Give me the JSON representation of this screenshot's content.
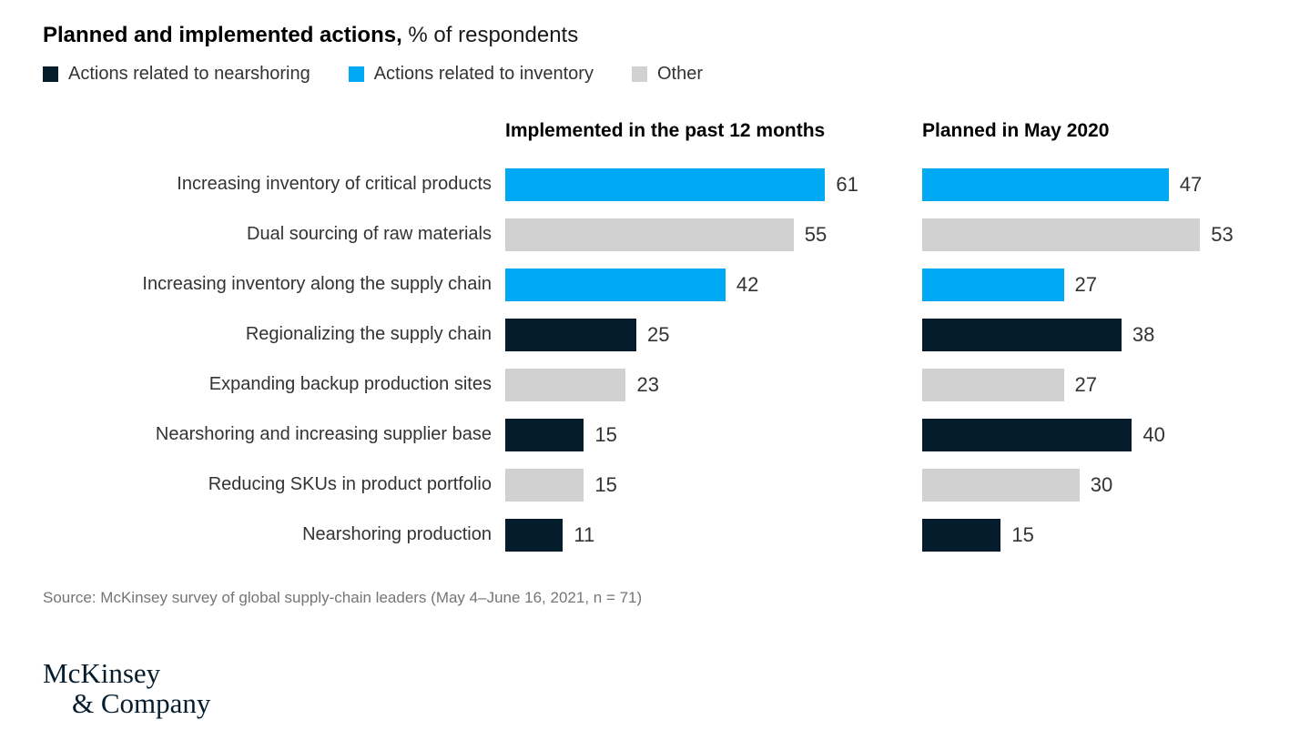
{
  "title": {
    "bold": "Planned and implemented actions,",
    "normal": " % of respondents"
  },
  "legend": [
    {
      "label": "Actions related to nearshoring",
      "color": "#051C2C"
    },
    {
      "label": "Actions related to inventory",
      "color": "#00A9F4"
    },
    {
      "label": "Other",
      "color": "#D1D1D1"
    }
  ],
  "panel_headers": [
    "Implemented in the past 12 months",
    "Planned in May 2020"
  ],
  "chart_data": {
    "type": "bar",
    "orientation": "horizontal",
    "title": "Planned and implemented actions, % of respondents",
    "categories": [
      "Increasing inventory of critical products",
      "Dual sourcing of raw materials",
      "Increasing inventory along the supply chain",
      "Regionalizing the supply chain",
      "Expanding backup production sites",
      "Nearshoring and increasing supplier base",
      "Reducing SKUs in product portfolio",
      "Nearshoring production"
    ],
    "category_groups": [
      "inventory",
      "other",
      "inventory",
      "nearshoring",
      "other",
      "nearshoring",
      "other",
      "nearshoring"
    ],
    "group_colors": {
      "nearshoring": "#051C2C",
      "inventory": "#00A9F4",
      "other": "#D1D1D1"
    },
    "series": [
      {
        "name": "Implemented in the past 12 months",
        "values": [
          61,
          55,
          42,
          25,
          23,
          15,
          15,
          11
        ]
      },
      {
        "name": "Planned in May 2020",
        "values": [
          47,
          53,
          27,
          38,
          27,
          40,
          30,
          15
        ]
      }
    ],
    "xlim": [
      0,
      65
    ],
    "value_labels": true,
    "grid": false,
    "legend_position": "top"
  },
  "source": "Source: McKinsey survey of global supply-chain leaders (May 4–June 16, 2021, n = 71)",
  "logo": {
    "line1": "McKinsey",
    "line2": "& Company"
  }
}
